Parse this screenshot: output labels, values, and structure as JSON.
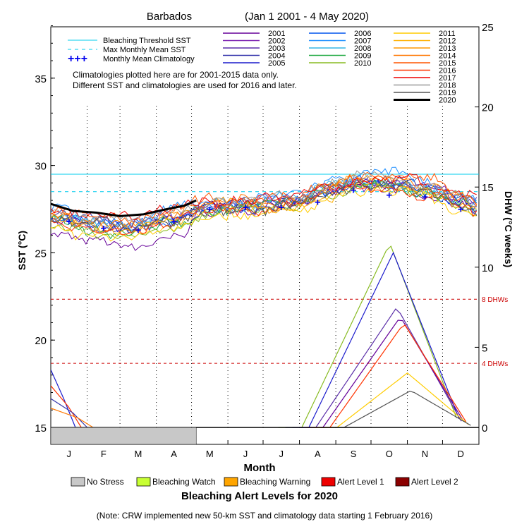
{
  "chart_data": {
    "type": "line",
    "title": "Barbados",
    "date_range": "(Jan 1 2001 - 4 May 2020)",
    "xlabel": "Month",
    "ylabel_left": "SST (°C)",
    "ylabel_right": "DHW (°C weeks)",
    "months": [
      "J",
      "F",
      "M",
      "A",
      "M",
      "J",
      "J",
      "A",
      "S",
      "O",
      "N",
      "D"
    ],
    "sst_ticks": [
      15,
      20,
      25,
      30,
      35
    ],
    "dhw_ticks": [
      0,
      5,
      10,
      15,
      20,
      25
    ],
    "sst_ylim": [
      15,
      38.8
    ],
    "dhw_ylim": [
      0,
      25
    ],
    "bleaching_threshold_sst": 29.5,
    "max_monthly_mean_sst": 28.5,
    "monthly_mean_climatology": [
      26.8,
      26.4,
      26.3,
      26.8,
      27.5,
      27.6,
      27.6,
      27.9,
      28.6,
      28.3,
      28.2,
      27.5
    ],
    "dhw_markers": [
      {
        "value": 8,
        "label": "8 DHWs"
      },
      {
        "value": 4,
        "label": "4 DHWs"
      }
    ],
    "legend_left": {
      "threshold": "Bleaching Threshold SST",
      "mmm": "Max Monthly Mean SST",
      "clim": "Monthly Mean Climatology"
    },
    "year_series": [
      {
        "name": "2001",
        "color": "#660099"
      },
      {
        "name": "2002",
        "color": "#7a1fb0"
      },
      {
        "name": "2003",
        "color": "#5a2da8"
      },
      {
        "name": "2004",
        "color": "#3333aa"
      },
      {
        "name": "2005",
        "color": "#1a1acc"
      },
      {
        "name": "2006",
        "color": "#0055ee"
      },
      {
        "name": "2007",
        "color": "#1f8fff"
      },
      {
        "name": "2008",
        "color": "#33b5e5"
      },
      {
        "name": "2009",
        "color": "#22aa44"
      },
      {
        "name": "2010",
        "color": "#88bb22"
      },
      {
        "name": "2011",
        "color": "#ffcc00"
      },
      {
        "name": "2012",
        "color": "#ffb000"
      },
      {
        "name": "2013",
        "color": "#ff9900"
      },
      {
        "name": "2014",
        "color": "#ff7700"
      },
      {
        "name": "2015",
        "color": "#ff5500"
      },
      {
        "name": "2016",
        "color": "#ff3300"
      },
      {
        "name": "2017",
        "color": "#ee0000"
      },
      {
        "name": "2018",
        "color": "#999999"
      },
      {
        "name": "2019",
        "color": "#555555"
      },
      {
        "name": "2020",
        "color": "#000000"
      }
    ],
    "series_2020_sst": [
      {
        "day": 1,
        "sst": 27.8
      },
      {
        "day": 20,
        "sst": 27.4
      },
      {
        "day": 40,
        "sst": 27.3
      },
      {
        "day": 60,
        "sst": 27.1
      },
      {
        "day": 80,
        "sst": 27.2
      },
      {
        "day": 100,
        "sst": 27.5
      },
      {
        "day": 115,
        "sst": 27.7
      },
      {
        "day": 125,
        "sst": 28.0
      }
    ],
    "climatology_note": [
      "Climatologies plotted here are for 2001-2015 data only.",
      "Different SST and climatologies are used for 2016 and later."
    ],
    "dhw_peaks": [
      {
        "name": "2010",
        "peak": 11.5,
        "color": "#88bb22"
      },
      {
        "name": "2005",
        "peak": 10.9,
        "color": "#1a1acc"
      },
      {
        "name": "2003",
        "peak": 7.5,
        "color": "#5a2da8"
      },
      {
        "name": "2001",
        "peak": 6.9,
        "color": "#660099"
      },
      {
        "name": "2016",
        "peak": 6.5,
        "color": "#ff3300"
      },
      {
        "name": "2011",
        "peak": 3.4,
        "color": "#ffcc00"
      },
      {
        "name": "2019",
        "peak": 2.3,
        "color": "#555555"
      }
    ],
    "alert_legend": [
      {
        "label": "No Stress",
        "color": "#c8c8c8"
      },
      {
        "label": "Bleaching Watch",
        "color": "#c8ff33"
      },
      {
        "label": "Bleaching Warning",
        "color": "#ffa500"
      },
      {
        "label": "Alert Level 1",
        "color": "#ee0000"
      },
      {
        "label": "Alert Level 2",
        "color": "#8b0000"
      }
    ],
    "alert_title": "Bleaching Alert Levels for 2020",
    "note": "(Note: CRW implemented new 50-km SST and climatology data starting 1 February 2016)"
  }
}
